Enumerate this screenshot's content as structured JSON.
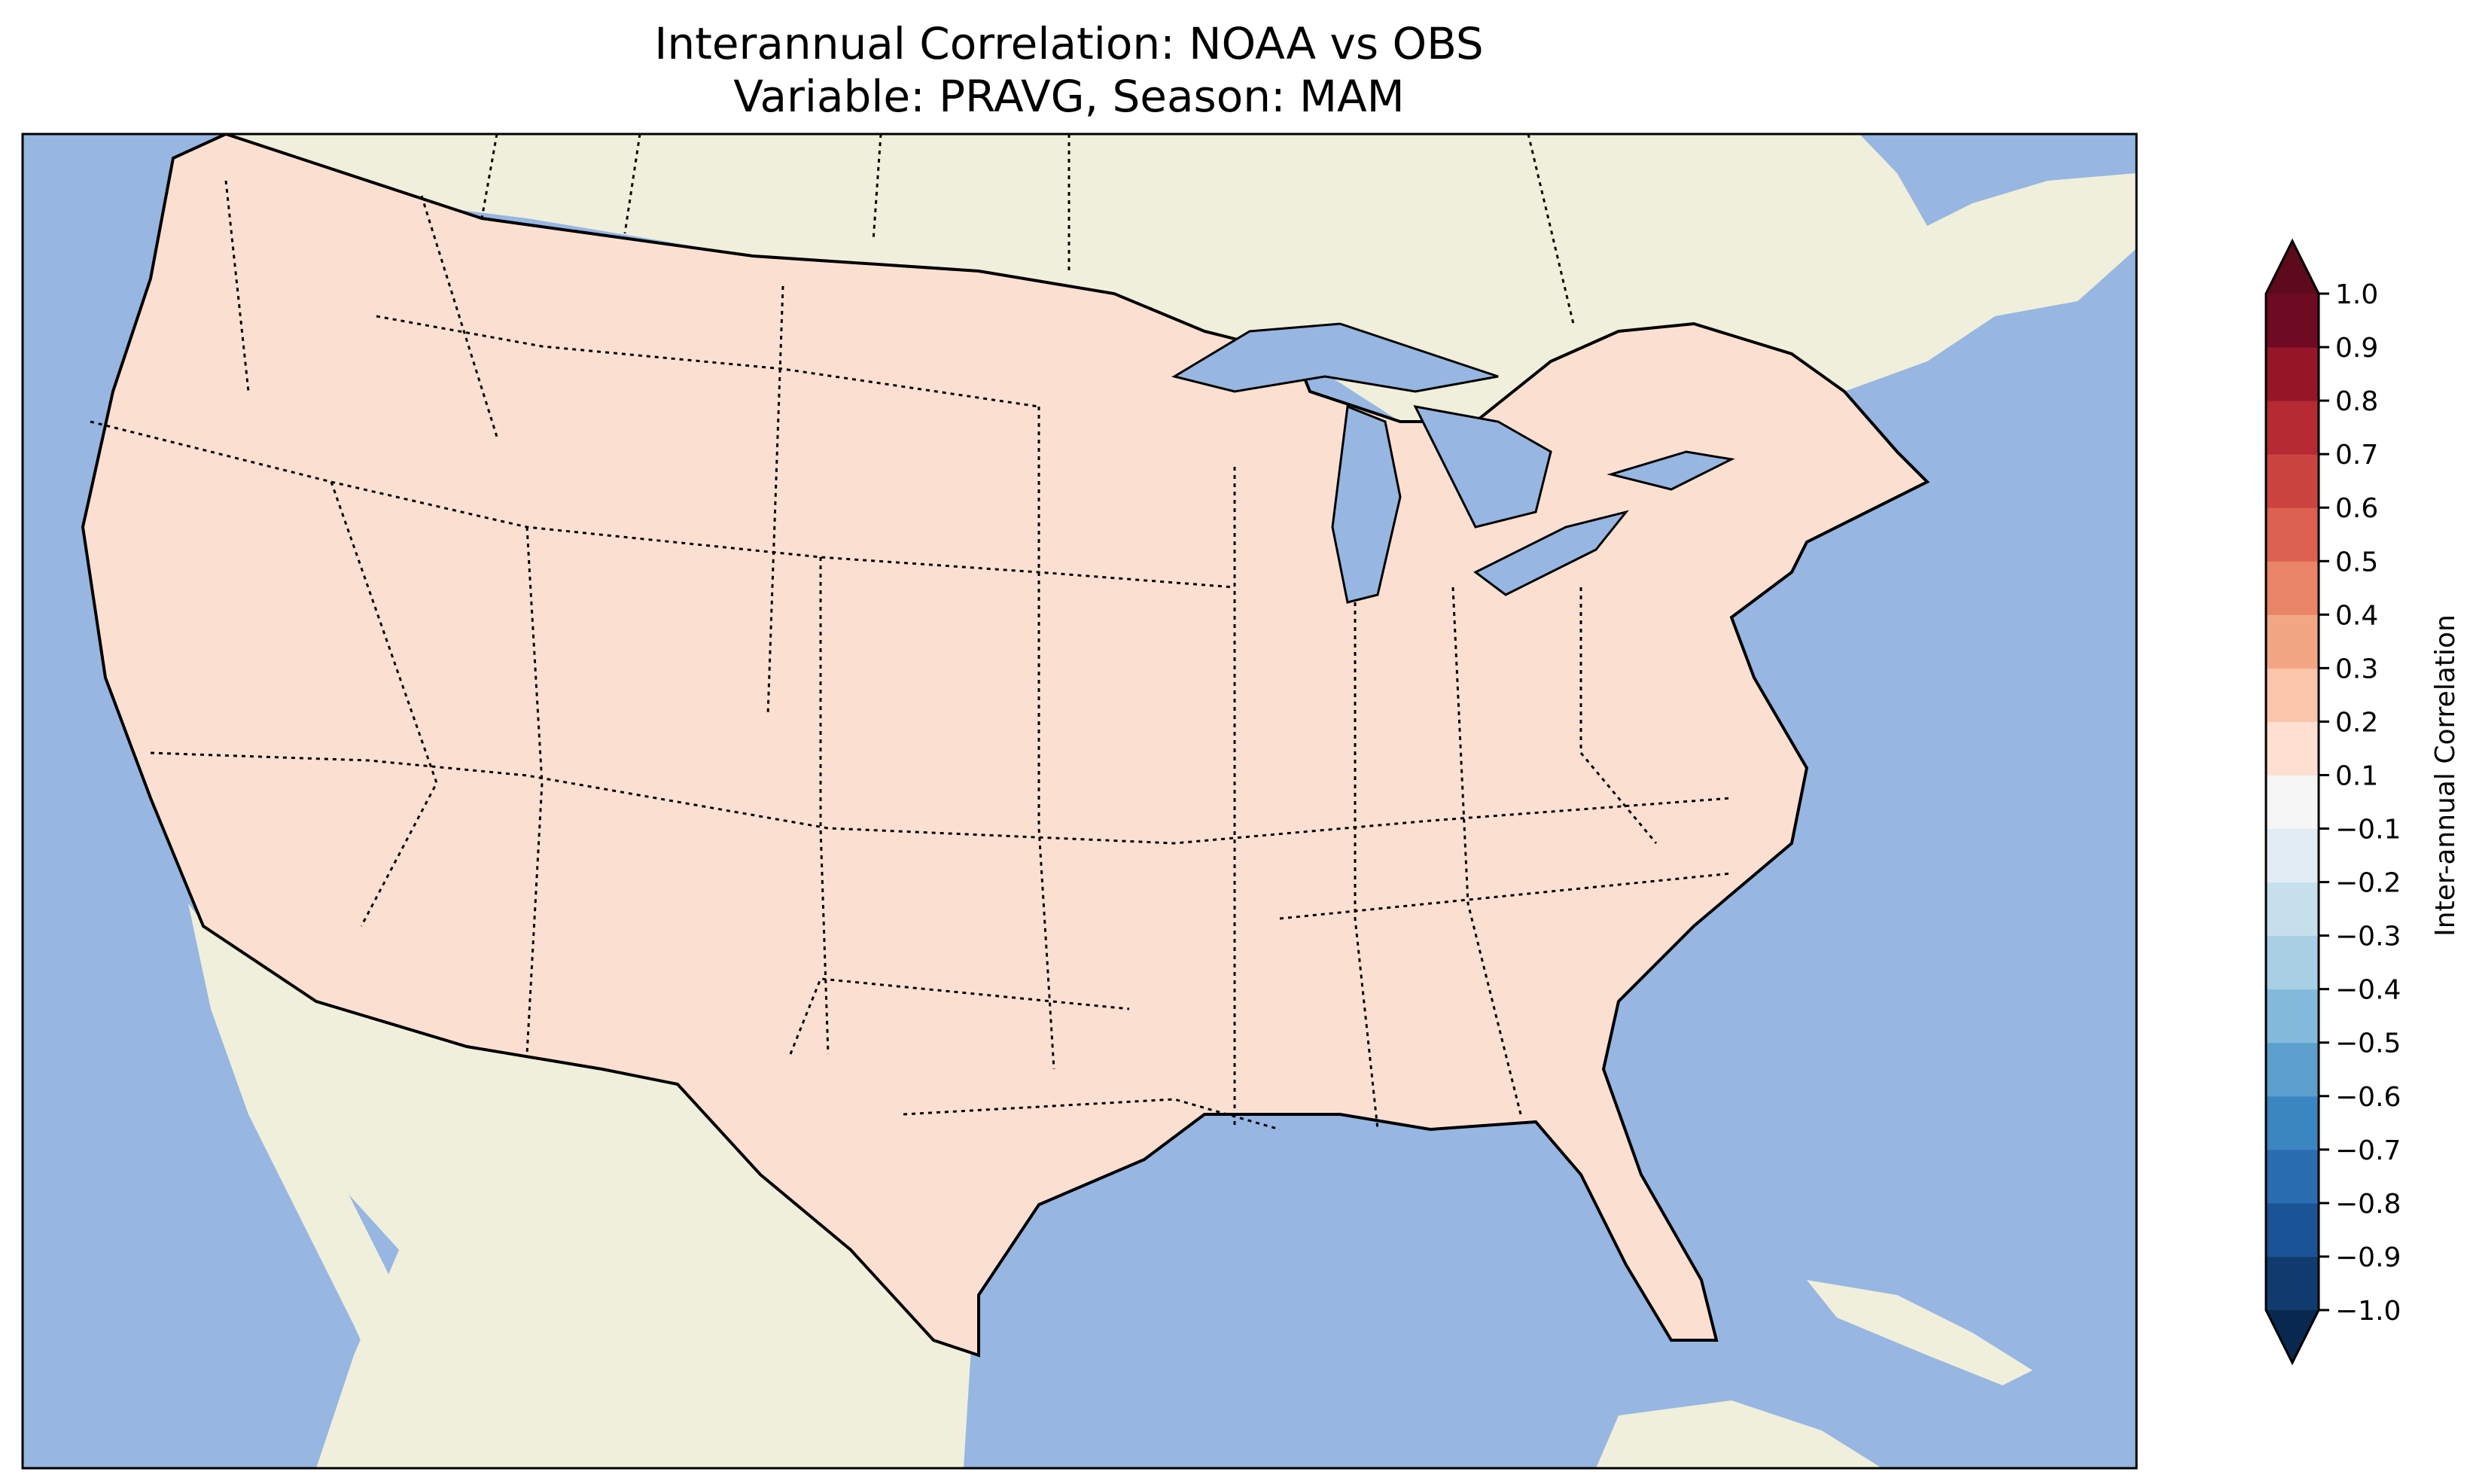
{
  "title": {
    "line1": "Interannual Correlation: NOAA vs OBS",
    "line2": "Variable: PRAVG, Season: MAM"
  },
  "map": {
    "ocean_color": "#97b6e1",
    "land_color": "#efefdb",
    "region": "Contiguous United States",
    "field": "interannual correlation (precipitation, spring MAM)"
  },
  "colorbar": {
    "label": "Inter-annual Correlation",
    "levels": [
      -1.0,
      -0.9,
      -0.8,
      -0.7,
      -0.6,
      -0.5,
      -0.4,
      -0.3,
      -0.2,
      -0.1,
      0.1,
      0.2,
      0.3,
      0.4,
      0.5,
      0.6,
      0.7,
      0.8,
      0.9,
      1.0
    ],
    "tick_labels": [
      "−1.0",
      "−0.9",
      "−0.8",
      "−0.7",
      "−0.6",
      "−0.5",
      "−0.4",
      "−0.3",
      "−0.2",
      "−0.1",
      "0.1",
      "0.2",
      "0.3",
      "0.4",
      "0.5",
      "0.6",
      "0.7",
      "0.8",
      "0.9",
      "1.0"
    ],
    "colors": [
      "#0f3b6f",
      "#1a5497",
      "#2a6db1",
      "#3b85c1",
      "#5ba0cc",
      "#83badb",
      "#a8cfe4",
      "#c6dfed",
      "#e1ecf4",
      "#f7f6f6",
      "#fde0d1",
      "#f9c5ab",
      "#f3a683",
      "#e98566",
      "#dc6150",
      "#cb4440",
      "#b52a33",
      "#961628",
      "#6e0a21"
    ],
    "extend_low_color": "#08284f",
    "extend_high_color": "#5c0a1c"
  }
}
